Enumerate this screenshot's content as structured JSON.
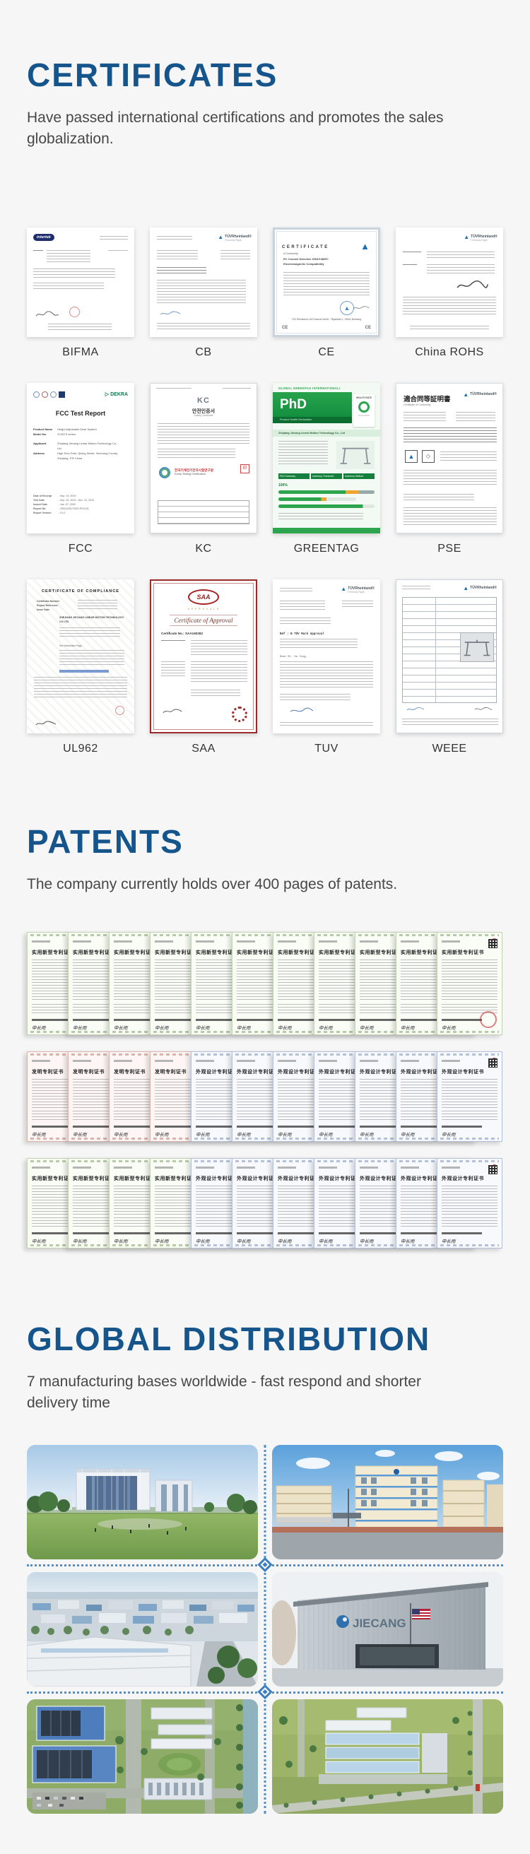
{
  "certificates": {
    "heading": "CERTIFICATES",
    "subtitle": "Have passed international certifications and promotes the sales globalization.",
    "items": [
      {
        "label": "BIFMA",
        "brand": "intertek"
      },
      {
        "label": "CB",
        "brand": "TÜVRheinland®",
        "tagline": "Precisely Right."
      },
      {
        "label": "CE",
        "title": "CERTIFICATE",
        "line1": "of Conformity",
        "line2": "EC Council Directive 2004/108/EC",
        "line3": "Electromagnetic Compatibility",
        "footer": "TÜV Rheinland LGA Products GmbH - Tillystraße 2 - 90431 Nürnberg"
      },
      {
        "label": "China ROHS",
        "brand": "TÜVRheinland®",
        "tagline": "Precisely Right."
      },
      {
        "label": "FCC",
        "title": "FCC Test Report",
        "dekra": "DEKRA",
        "fields": [
          {
            "l": "Product Name",
            "v": "Height Adjustable Desk System"
          },
          {
            "l": "Model No.",
            "v": "JC35TS series"
          },
          {
            "l": "Applicant",
            "v": "Zhejiang Jiecang Linear Motion Technology Co., Ltd."
          },
          {
            "l": "Address",
            "v": "High Tech Park, Qixing Street, Xinchang County, Zhejiang, P.R China"
          }
        ],
        "dates": [
          {
            "l": "Date of Receipt",
            "v": "Sep. 19, 2019"
          },
          {
            "l": "Test Date",
            "v": "Sep. 20, 2019 - Dec. 31, 2019"
          },
          {
            "l": "Issued Date",
            "v": "Jan. 07, 2020"
          },
          {
            "l": "Report No.",
            "v": "19021045-ITAJS-P01V01"
          },
          {
            "l": "Report Version",
            "v": "V1.0"
          }
        ]
      },
      {
        "label": "KC",
        "mark": "KC",
        "title": "안전인증서",
        "subtitle": "Safety Certificate",
        "org_ko": "한국기계전기전자시험연구원",
        "org_en": "Korea Testing Certification"
      },
      {
        "label": "GREENTAG",
        "header": "GLOBAL GREENTAG INTERNATIONAL!",
        "logo": "PhD",
        "logo_sub": "Product Health Declaration",
        "tag_top": "HEALTH RATE",
        "company": "Zhejiang Jiecang Linear Motion Technology Co., Ltd",
        "col1": "PhD Summary",
        "col2": "Inventory Threshold",
        "col3": "Inventory Method",
        "pct": "100%"
      },
      {
        "label": "PSE",
        "title": "適合同等証明書",
        "subtitle": "Certificate of Conformity",
        "brand": "TÜVRheinland®"
      },
      {
        "label": "UL962",
        "title": "CERTIFICATE OF COMPLIANCE",
        "f1": "Certificate Number",
        "f2": "Report Reference",
        "f3": "Issue Date",
        "issued_to": "ZHEJIANG JIECANG LINEAR MOTION TECHNOLOGY CO LTD",
        "note": "See Addendum Page"
      },
      {
        "label": "SAA",
        "logo": "SAA",
        "approvals": "A P P R O V A L S",
        "title": "Certificate of Approval",
        "cert_no_l": "Certificate No.:",
        "cert_no": "SAA160282"
      },
      {
        "label": "TUV",
        "brand": "TÜVRheinland®",
        "tagline": "Precisely Right.",
        "ref": "Ref : B TÜV Mark Approval",
        "salute": "Dear Mr. Hu Ying,"
      },
      {
        "label": "WEEE",
        "brand": "TÜVRheinland®"
      }
    ]
  },
  "patents": {
    "heading": "PATENTS",
    "subtitle": "The company currently holds over 400 pages of patents.",
    "signature": "申长雨",
    "rows": [
      {
        "cards": [
          {
            "theme": "green",
            "title": "实用新型专利证书"
          },
          {
            "theme": "green",
            "title": "实用新型专利证书"
          },
          {
            "theme": "green",
            "title": "实用新型专利证书"
          },
          {
            "theme": "green",
            "title": "实用新型专利证书"
          },
          {
            "theme": "green",
            "title": "实用新型专利证书"
          },
          {
            "theme": "green",
            "title": "实用新型专利证书"
          },
          {
            "theme": "green",
            "title": "实用新型专利证书"
          },
          {
            "theme": "green",
            "title": "实用新型专利证书"
          },
          {
            "theme": "green",
            "title": "实用新型专利证书"
          },
          {
            "theme": "green",
            "title": "实用新型专利证书"
          },
          {
            "theme": "green",
            "title": "实用新型专利证书",
            "wide": true,
            "qr": true,
            "stamp": true
          }
        ]
      },
      {
        "cards": [
          {
            "theme": "red",
            "title": "发明专利证书"
          },
          {
            "theme": "red",
            "title": "发明专利证书"
          },
          {
            "theme": "red",
            "title": "发明专利证书"
          },
          {
            "theme": "red",
            "title": "发明专利证书"
          },
          {
            "theme": "blue",
            "title": "外观设计专利证书"
          },
          {
            "theme": "blue",
            "title": "外观设计专利证书"
          },
          {
            "theme": "blue",
            "title": "外观设计专利证书"
          },
          {
            "theme": "blue",
            "title": "外观设计专利证书"
          },
          {
            "theme": "blue",
            "title": "外观设计专利证书"
          },
          {
            "theme": "blue",
            "title": "外观设计专利证书"
          },
          {
            "theme": "blue",
            "title": "外观设计专利证书",
            "wide": true,
            "qr": true
          }
        ]
      },
      {
        "cards": [
          {
            "theme": "green",
            "title": "实用新型专利证书"
          },
          {
            "theme": "green",
            "title": "实用新型专利证书"
          },
          {
            "theme": "green",
            "title": "实用新型专利证书"
          },
          {
            "theme": "green",
            "title": "实用新型专利证书"
          },
          {
            "theme": "blue",
            "title": "外观设计专利证书"
          },
          {
            "theme": "blue",
            "title": "外观设计专利证书"
          },
          {
            "theme": "blue",
            "title": "外观设计专利证书"
          },
          {
            "theme": "blue",
            "title": "外观设计专利证书"
          },
          {
            "theme": "blue",
            "title": "外观设计专利证书"
          },
          {
            "theme": "blue",
            "title": "外观设计专利证书"
          },
          {
            "theme": "blue",
            "title": "外观设计专利证书",
            "wide": true,
            "qr": true
          }
        ]
      }
    ]
  },
  "global_distribution": {
    "heading": "GLOBAL DISTRIBUTION",
    "subtitle": "7 manufacturing bases worldwide - fast respond and shorter delivery time",
    "photos": [
      {
        "name": "headquarters-campus"
      },
      {
        "name": "factory-street-view"
      },
      {
        "name": "industrial-park-aerial"
      },
      {
        "name": "jiecang-us-warehouse",
        "sign": "JIECANG"
      },
      {
        "name": "campus-aerial-blue-roofs"
      },
      {
        "name": "factory-aerial-fields"
      }
    ]
  }
}
